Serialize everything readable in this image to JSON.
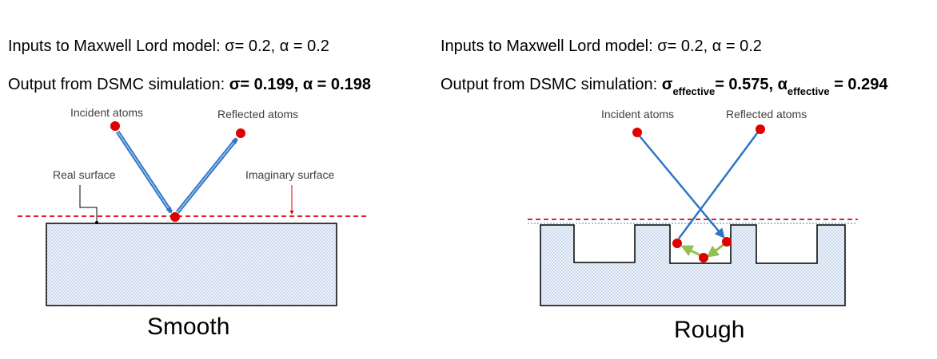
{
  "left": {
    "inputs": "Inputs to Maxwell Lord model: σ= 0.2, α = 0.2",
    "output_prefix": "Output from DSMC simulation: ",
    "output_values": "σ= 0.199,  α = 0.198",
    "labels": {
      "incident": "Incident atoms",
      "reflected": "Reflected atoms",
      "real_surface": "Real surface",
      "imaginary_surface": "Imaginary surface"
    },
    "caption": "Smooth"
  },
  "right": {
    "inputs": "Inputs to Maxwell Lord model: σ= 0.2, α = 0.2",
    "output_prefix": "Output from DSMC simulation: ",
    "sigma_symbol": "σ",
    "sigma_sub": "effective",
    "sigma_value": "= 0.575,  ",
    "alpha_symbol": "α",
    "alpha_sub": "effective",
    "alpha_value": " = 0.294",
    "labels": {
      "incident": "Incident atoms",
      "reflected": "Reflected atoms"
    },
    "caption": "Rough"
  },
  "colors": {
    "atom": "#e00000",
    "arrow_blue": "#2e75c6",
    "imaginary_surface": "#e00000",
    "real_surface_line": "#5bc0e8",
    "green_arrow": "#92c050",
    "surface_fill": "#dce6f2"
  }
}
